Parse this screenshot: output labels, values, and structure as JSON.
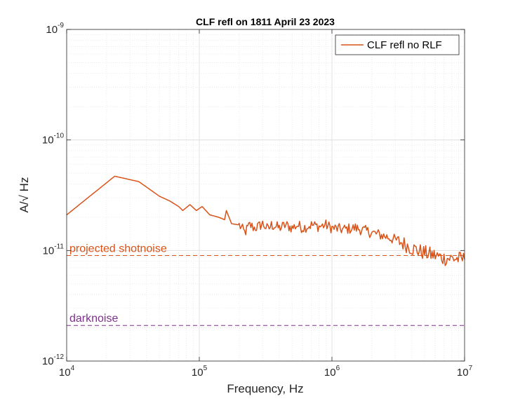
{
  "chart_data": {
    "type": "line",
    "title": "CLF refl on 1811 April 23 2023",
    "xlabel": "Frequency, Hz",
    "ylabel": "A/√ Hz",
    "xscale": "log",
    "yscale": "log",
    "xlim": [
      10000,
      10000000
    ],
    "ylim": [
      1e-12,
      1e-09
    ],
    "grid": true,
    "minor_grid": true,
    "legend_position": "top-right",
    "x_ticks": [
      {
        "base": "10",
        "exp": "4",
        "value": 10000
      },
      {
        "base": "10",
        "exp": "5",
        "value": 100000
      },
      {
        "base": "10",
        "exp": "6",
        "value": 1000000
      },
      {
        "base": "10",
        "exp": "7",
        "value": 10000000
      }
    ],
    "y_ticks": [
      {
        "base": "10",
        "exp": "-12",
        "value": 1e-12
      },
      {
        "base": "10",
        "exp": "-11",
        "value": 1e-11
      },
      {
        "base": "10",
        "exp": "-10",
        "value": 1e-10
      },
      {
        "base": "10",
        "exp": "-9",
        "value": 1e-09
      }
    ],
    "series": [
      {
        "name": "CLF refl no RLF",
        "color": "#d95319",
        "x": [
          10000,
          23000,
          35000,
          50000,
          60000,
          70000,
          75000,
          85000,
          95000,
          105000,
          120000,
          140000,
          155000,
          160000,
          175000,
          200000,
          220000,
          240000,
          260000,
          280000,
          300000,
          330000,
          350000,
          380000,
          400000,
          450000,
          500000,
          550000,
          600000,
          700000,
          800000,
          900000,
          1000000,
          1200000,
          1500000,
          2000000,
          2500000,
          3000000,
          3500000,
          4000000,
          5000000,
          6000000,
          7000000,
          8000000,
          10000000
        ],
        "y": [
          2.1e-11,
          4.7e-11,
          4.2e-11,
          3.1e-11,
          2.8e-11,
          2.5e-11,
          2.3e-11,
          2.6e-11,
          2.3e-11,
          2.5e-11,
          2.1e-11,
          2e-11,
          1.9e-11,
          2.3e-11,
          1.75e-11,
          1.7e-11,
          1.45e-11,
          1.7e-11,
          1.6e-11,
          1.65e-11,
          1.75e-11,
          1.55e-11,
          1.7e-11,
          1.65e-11,
          1.6e-11,
          1.7e-11,
          1.6e-11,
          1.7e-11,
          1.6e-11,
          1.7e-11,
          1.65e-11,
          1.7e-11,
          1.6e-11,
          1.55e-11,
          1.6e-11,
          1.45e-11,
          1.35e-11,
          1.25e-11,
          1.15e-11,
          1.05e-11,
          9.5e-12,
          9e-12,
          8.5e-12,
          8.5e-12,
          8.3e-12
        ]
      }
    ],
    "reference_lines": [
      {
        "label": "projected shotnoise",
        "y": 9e-12,
        "color": "#d95319",
        "style": "dashed"
      },
      {
        "label": "darknoise",
        "y": 2.1e-12,
        "color": "#7e2f8e",
        "style": "dashed"
      }
    ]
  }
}
